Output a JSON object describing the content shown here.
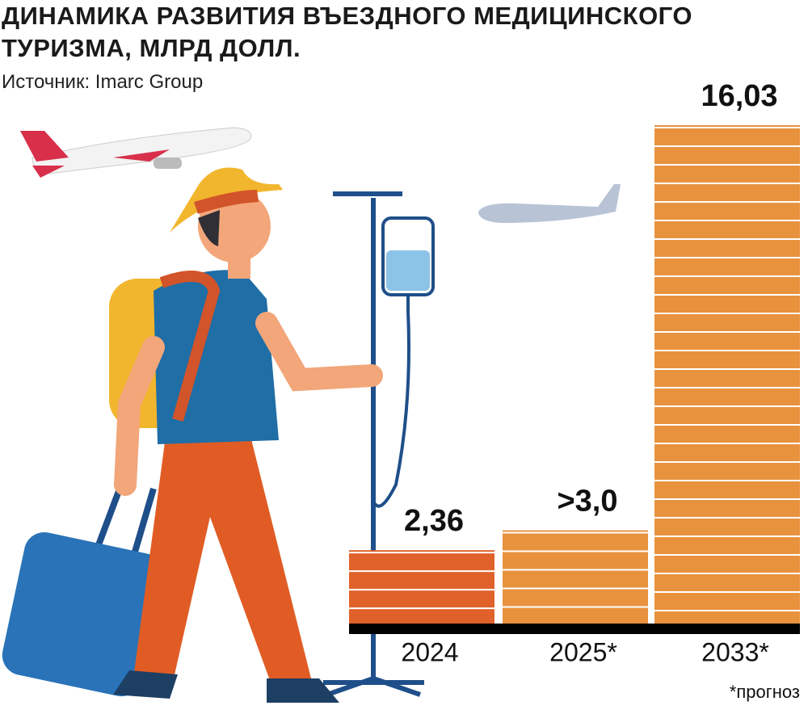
{
  "chart_data": {
    "type": "bar",
    "title": "ДИНАМИКА РАЗВИТИЯ ВЪЕЗДНОГО МЕДИЦИНСКОГО ТУРИЗМА, МЛРД ДОЛЛ.",
    "source": "Источник: Imarc Group",
    "note": "*прогноз",
    "categories": [
      "2024",
      "2025*",
      "2033*"
    ],
    "values": [
      2.36,
      3.0,
      16.03
    ],
    "value_labels": [
      "2,36",
      ">3,0",
      "16,03"
    ],
    "colors": [
      "#e0622a",
      "#e8923e",
      "#e8923e"
    ]
  }
}
